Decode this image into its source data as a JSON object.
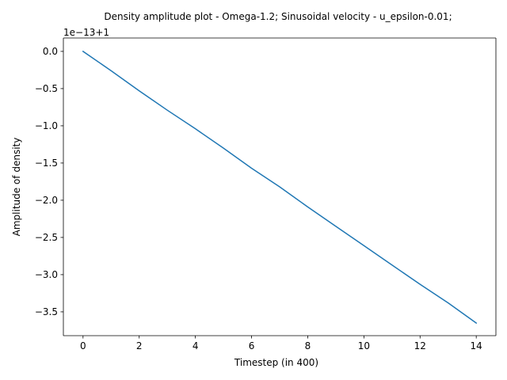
{
  "chart_data": {
    "type": "line",
    "title": "Density amplitude plot - Omega-1.2; Sinusoidal velocity - u_epsilon-0.01;",
    "xlabel": "Timestep (in 400)",
    "ylabel": "Amplitude of density",
    "y_offset_text": "1e−13+1",
    "xlim": [
      -0.7,
      14.7
    ],
    "ylim": [
      -3.82,
      0.18
    ],
    "x_ticks": [
      0,
      2,
      4,
      6,
      8,
      10,
      12,
      14
    ],
    "x_tick_labels": [
      "0",
      "2",
      "4",
      "6",
      "8",
      "10",
      "12",
      "14"
    ],
    "y_ticks": [
      0.0,
      -0.5,
      -1.0,
      -1.5,
      -2.0,
      -2.5,
      -3.0,
      -3.5
    ],
    "y_tick_labels": [
      "0.0",
      "−0.5",
      "−1.0",
      "−1.5",
      "−2.0",
      "−2.5",
      "−3.0",
      "−3.5"
    ],
    "grid": false,
    "series": [
      {
        "color": "#1f77b4",
        "x": [
          0,
          1,
          2,
          3,
          4,
          5,
          6,
          7,
          8,
          9,
          10,
          11,
          12,
          13,
          14
        ],
        "y": [
          0.0,
          -0.26,
          -0.53,
          -0.79,
          -1.04,
          -1.3,
          -1.57,
          -1.82,
          -2.09,
          -2.35,
          -2.61,
          -2.87,
          -3.13,
          -3.38,
          -3.65
        ]
      }
    ]
  }
}
